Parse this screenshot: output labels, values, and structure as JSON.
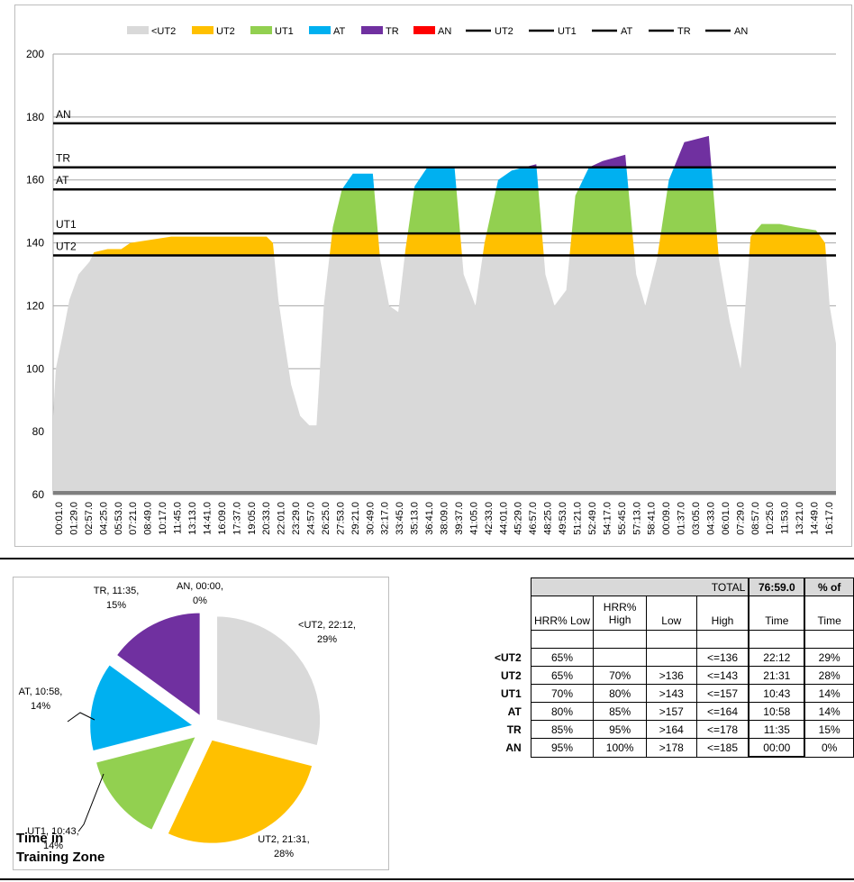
{
  "chart_data": [
    {
      "type": "area",
      "legend": [
        "<UT2",
        "UT2",
        "UT1",
        "AT",
        "TR",
        "AN",
        "UT2",
        "UT1",
        "AT",
        "TR",
        "AN"
      ],
      "legend_position": "top",
      "ylim": [
        60,
        200
      ],
      "yticks": [
        60,
        80,
        100,
        120,
        140,
        160,
        180,
        200
      ],
      "xticks": [
        "00:01.0",
        "01:29.0",
        "02:57.0",
        "04:25.0",
        "05:53.0",
        "07:21.0",
        "08:49.0",
        "10:17.0",
        "11:45.0",
        "13:13.0",
        "14:41.0",
        "16:09.0",
        "17:37.0",
        "19:05.0",
        "20:33.0",
        "22:01.0",
        "23:29.0",
        "24:57.0",
        "26:25.0",
        "27:53.0",
        "29:21.0",
        "30:49.0",
        "32:17.0",
        "33:45.0",
        "35:13.0",
        "36:41.0",
        "38:09.0",
        "39:37.0",
        "41:05.0",
        "42:33.0",
        "44:01.0",
        "45:29.0",
        "46:57.0",
        "48:25.0",
        "49:53.0",
        "51:21.0",
        "52:49.0",
        "54:17.0",
        "55:45.0",
        "57:13.0",
        "58:41.0",
        "00:09.0",
        "01:37.0",
        "03:05.0",
        "04:33.0",
        "06:01.0",
        "07:29.0",
        "08:57.0",
        "10:25.0",
        "11:53.0",
        "13:21.0",
        "14:49.0",
        "16:17.0"
      ],
      "zone_lines": [
        {
          "name": "AN",
          "value": 178
        },
        {
          "name": "TR",
          "value": 164
        },
        {
          "name": "AT",
          "value": 157
        },
        {
          "name": "UT1",
          "value": 143
        },
        {
          "name": "UT2",
          "value": 136
        }
      ],
      "zone_colors": {
        "<UT2": "#d9d9d9",
        "UT2": "#ffc000",
        "UT1": "#92d050",
        "AT": "#00b0f0",
        "TR": "#7030a0",
        "AN": "#ff0000"
      },
      "heart_rate_profile": [
        [
          0,
          85
        ],
        [
          3,
          100
        ],
        [
          10,
          110
        ],
        [
          18,
          122
        ],
        [
          28,
          130
        ],
        [
          40,
          134
        ],
        [
          45,
          137
        ],
        [
          60,
          138
        ],
        [
          75,
          138
        ],
        [
          85,
          140
        ],
        [
          130,
          142
        ],
        [
          235,
          142
        ],
        [
          242,
          140
        ],
        [
          248,
          122
        ],
        [
          255,
          108
        ],
        [
          262,
          95
        ],
        [
          272,
          85
        ],
        [
          282,
          82
        ],
        [
          290,
          82
        ],
        [
          298,
          120
        ],
        [
          308,
          145
        ],
        [
          318,
          157
        ],
        [
          330,
          162
        ],
        [
          352,
          162
        ],
        [
          360,
          135
        ],
        [
          370,
          120
        ],
        [
          380,
          118
        ],
        [
          388,
          138
        ],
        [
          398,
          158
        ],
        [
          412,
          164
        ],
        [
          442,
          164
        ],
        [
          452,
          130
        ],
        [
          465,
          120
        ],
        [
          475,
          140
        ],
        [
          490,
          160
        ],
        [
          505,
          163
        ],
        [
          532,
          165
        ],
        [
          542,
          130
        ],
        [
          552,
          120
        ],
        [
          565,
          125
        ],
        [
          575,
          155
        ],
        [
          590,
          164
        ],
        [
          605,
          166
        ],
        [
          630,
          168
        ],
        [
          642,
          130
        ],
        [
          652,
          120
        ],
        [
          665,
          135
        ],
        [
          678,
          160
        ],
        [
          695,
          172
        ],
        [
          722,
          174
        ],
        [
          733,
          135
        ],
        [
          745,
          115
        ],
        [
          757,
          100
        ],
        [
          768,
          142
        ],
        [
          780,
          146
        ],
        [
          800,
          146
        ],
        [
          818,
          145
        ],
        [
          840,
          144
        ],
        [
          850,
          140
        ],
        [
          855,
          120
        ],
        [
          862,
          108
        ]
      ]
    },
    {
      "type": "pie",
      "title": "Time in Training Zone",
      "slices": [
        {
          "label": "<UT2",
          "time": "22:12",
          "percent": "29%",
          "value": 29,
          "color": "#d9d9d9"
        },
        {
          "label": "UT2",
          "time": "21:31",
          "percent": "28%",
          "value": 28,
          "color": "#ffc000"
        },
        {
          "label": "UT1",
          "time": "10:43",
          "percent": "14%",
          "value": 14,
          "color": "#92d050"
        },
        {
          "label": "AT",
          "time": "10:58",
          "percent": "14%",
          "value": 14,
          "color": "#00b0f0"
        },
        {
          "label": "TR",
          "time": "11:35",
          "percent": "15%",
          "value": 15,
          "color": "#7030a0"
        },
        {
          "label": "AN",
          "time": "00:00",
          "percent": "0%",
          "value": 0,
          "color": "#ff0000"
        }
      ]
    }
  ],
  "pie_labels": {
    "ut2b": [
      "<UT2, 22:12,",
      "29%"
    ],
    "ut2": [
      "UT2, 21:31,",
      "28%"
    ],
    "ut1": [
      "UT1, 10:43,",
      "14%"
    ],
    "at": [
      "AT, 10:58,",
      "14%"
    ],
    "tr": [
      "TR, 11:35,",
      "15%"
    ],
    "an": [
      "AN, 00:00,",
      "0%"
    ]
  },
  "pie_title_lines": [
    "Time in",
    "Training Zone"
  ],
  "table": {
    "total_label": "TOTAL",
    "total_time": "76:59.0",
    "pct_header": "% of",
    "headers": {
      "hrr_low": "HRR% Low",
      "hrr_high_1": "HRR%",
      "hrr_high_2": "High",
      "low": "Low",
      "high": "High",
      "time": "Time",
      "pct_time": "Time"
    },
    "rows": [
      {
        "zone": "<UT2",
        "hrr_low": "65%",
        "hrr_high": "",
        "low": "",
        "high": "<=136",
        "time": "22:12",
        "pct": "29%"
      },
      {
        "zone": "UT2",
        "hrr_low": "65%",
        "hrr_high": "70%",
        "low": ">136",
        "high": "<=143",
        "time": "21:31",
        "pct": "28%"
      },
      {
        "zone": "UT1",
        "hrr_low": "70%",
        "hrr_high": "80%",
        "low": ">143",
        "high": "<=157",
        "time": "10:43",
        "pct": "14%"
      },
      {
        "zone": "AT",
        "hrr_low": "80%",
        "hrr_high": "85%",
        "low": ">157",
        "high": "<=164",
        "time": "10:58",
        "pct": "14%"
      },
      {
        "zone": "TR",
        "hrr_low": "85%",
        "hrr_high": "95%",
        "low": ">164",
        "high": "<=178",
        "time": "11:35",
        "pct": "15%"
      },
      {
        "zone": "AN",
        "hrr_low": "95%",
        "hrr_high": "100%",
        "low": ">178",
        "high": "<=185",
        "time": "00:00",
        "pct": "0%"
      }
    ]
  }
}
